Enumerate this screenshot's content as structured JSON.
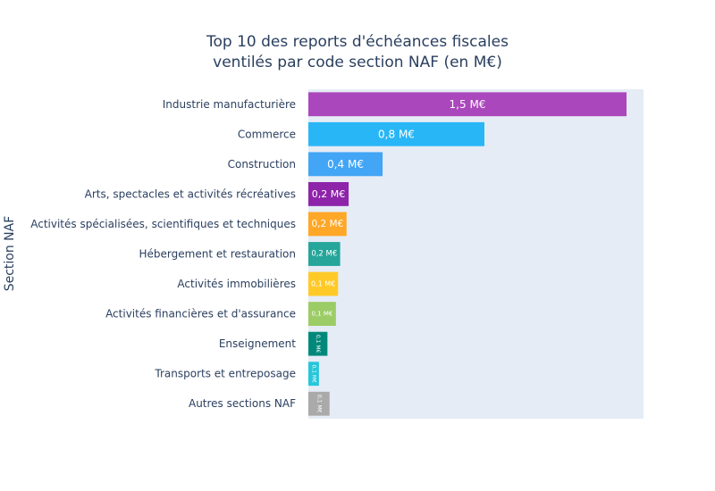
{
  "chart_data": {
    "type": "bar",
    "orientation": "horizontal",
    "title": "Top 10 des reports d'échéances fiscales ventilés par code section NAF (en M€)",
    "title_lines": [
      "Top 10 des reports d'échéances fiscales",
      "ventilés par code section NAF (en M€)"
    ],
    "xlabel": "",
    "ylabel": "Section NAF",
    "xlim": [
      0,
      1.58
    ],
    "grid": false,
    "legend": "none",
    "categories": [
      "Industrie manufacturière",
      "Commerce",
      "Construction",
      "Arts, spectacles et activités récréatives",
      "Activités spécialisées, scientifiques et techniques",
      "Hébergement et restauration",
      "Activités immobilières",
      "Activités financières et d'assurance",
      "Enseignement",
      "Transports et entreposage",
      "Autres sections NAF"
    ],
    "values": [
      1.5,
      0.83,
      0.35,
      0.19,
      0.18,
      0.15,
      0.14,
      0.13,
      0.09,
      0.05,
      0.1
    ],
    "labels": [
      "1,5 M€",
      "0,8 M€",
      "0,4 M€",
      "0,2 M€",
      "0,2 M€",
      "0,2 M€",
      "0,1 M€",
      "0,1 M€",
      "0,1 M€",
      "0,1 M€",
      "0,1 M€"
    ],
    "colors": [
      "#ab47bc",
      "#29b6f6",
      "#42a5f5",
      "#8e24aa",
      "#ffa726",
      "#26a69a",
      "#ffca28",
      "#9ccc65",
      "#00897b",
      "#26c6da",
      "#aaaaaa"
    ],
    "plot_background": "#e5ecf6"
  }
}
